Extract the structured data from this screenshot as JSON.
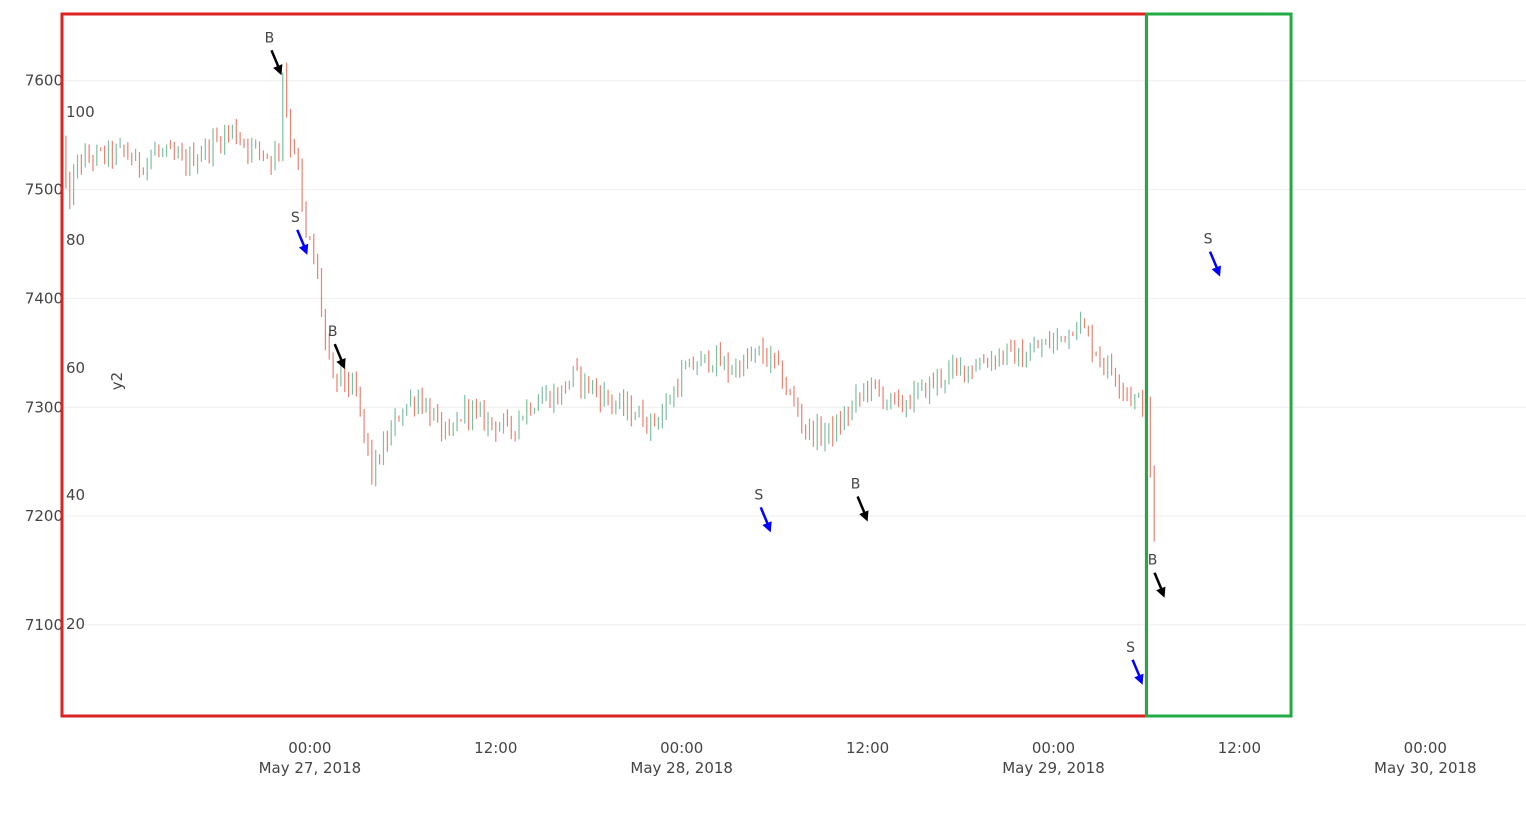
{
  "chart_data": {
    "type": "candlestick",
    "x_range": [
      "2018-05-26 08:00",
      "2018-05-30 06:30"
    ],
    "y_range": [
      7020,
      7665
    ],
    "y_ticks": [
      7100,
      7200,
      7300,
      7400,
      7500,
      7600
    ],
    "y2_label": "y2",
    "y2_ticks": [
      20,
      40,
      60,
      80,
      100
    ],
    "grid": true,
    "x_ticks": [
      {
        "at": "2018-05-27 00:00",
        "time": "00:00",
        "date": "May 27, 2018"
      },
      {
        "at": "2018-05-27 12:00",
        "time": "12:00",
        "date": ""
      },
      {
        "at": "2018-05-28 00:00",
        "time": "00:00",
        "date": "May 28, 2018"
      },
      {
        "at": "2018-05-28 12:00",
        "time": "12:00",
        "date": ""
      },
      {
        "at": "2018-05-29 00:00",
        "time": "00:00",
        "date": "May 29, 2018"
      },
      {
        "at": "2018-05-29 12:00",
        "time": "12:00",
        "date": ""
      },
      {
        "at": "2018-05-30 00:00",
        "time": "00:00",
        "date": "May 30, 2018"
      }
    ],
    "price_path": [
      [
        "2018-05-26 08:00",
        7540
      ],
      [
        "2018-05-26 08:20",
        7485
      ],
      [
        "2018-05-26 09:00",
        7525
      ],
      [
        "2018-05-26 10:00",
        7530
      ],
      [
        "2018-05-26 11:00",
        7532
      ],
      [
        "2018-05-26 12:00",
        7535
      ],
      [
        "2018-05-26 13:00",
        7522
      ],
      [
        "2018-05-26 14:00",
        7535
      ],
      [
        "2018-05-26 15:00",
        7530
      ],
      [
        "2018-05-26 16:00",
        7525
      ],
      [
        "2018-05-26 17:00",
        7535
      ],
      [
        "2018-05-26 18:00",
        7545
      ],
      [
        "2018-05-26 19:00",
        7555
      ],
      [
        "2018-05-26 20:00",
        7540
      ],
      [
        "2018-05-26 21:00",
        7535
      ],
      [
        "2018-05-26 21:30",
        7528
      ],
      [
        "2018-05-26 22:00",
        7540
      ],
      [
        "2018-05-26 22:15",
        7610
      ],
      [
        "2018-05-26 22:40",
        7545
      ],
      [
        "2018-05-26 23:00",
        7540
      ],
      [
        "2018-05-26 23:20",
        7510
      ],
      [
        "2018-05-26 23:40",
        7455
      ],
      [
        "2018-05-27 00:00",
        7450
      ],
      [
        "2018-05-27 00:30",
        7420
      ],
      [
        "2018-05-27 01:00",
        7360
      ],
      [
        "2018-05-27 01:30",
        7320
      ],
      [
        "2018-05-27 02:00",
        7330
      ],
      [
        "2018-05-27 03:00",
        7310
      ],
      [
        "2018-05-27 04:00",
        7240
      ],
      [
        "2018-05-27 05:00",
        7270
      ],
      [
        "2018-05-27 06:00",
        7300
      ],
      [
        "2018-05-27 07:00",
        7310
      ],
      [
        "2018-05-27 08:00",
        7290
      ],
      [
        "2018-05-27 09:00",
        7270
      ],
      [
        "2018-05-27 10:00",
        7300
      ],
      [
        "2018-05-27 11:00",
        7290
      ],
      [
        "2018-05-27 12:00",
        7285
      ],
      [
        "2018-05-27 13:00",
        7280
      ],
      [
        "2018-05-27 14:00",
        7300
      ],
      [
        "2018-05-27 15:00",
        7310
      ],
      [
        "2018-05-27 16:00",
        7310
      ],
      [
        "2018-05-27 17:00",
        7330
      ],
      [
        "2018-05-27 18:00",
        7320
      ],
      [
        "2018-05-27 19:00",
        7310
      ],
      [
        "2018-05-27 20:00",
        7300
      ],
      [
        "2018-05-27 21:00",
        7295
      ],
      [
        "2018-05-27 22:00",
        7285
      ],
      [
        "2018-05-27 23:00",
        7300
      ],
      [
        "2018-05-28 00:00",
        7330
      ],
      [
        "2018-05-28 01:00",
        7340
      ],
      [
        "2018-05-28 02:00",
        7345
      ],
      [
        "2018-05-28 03:00",
        7335
      ],
      [
        "2018-05-28 04:00",
        7340
      ],
      [
        "2018-05-28 05:00",
        7350
      ],
      [
        "2018-05-28 06:00",
        7340
      ],
      [
        "2018-05-28 07:00",
        7310
      ],
      [
        "2018-05-28 08:00",
        7280
      ],
      [
        "2018-05-28 09:00",
        7275
      ],
      [
        "2018-05-28 10:00",
        7280
      ],
      [
        "2018-05-28 11:00",
        7300
      ],
      [
        "2018-05-28 12:00",
        7320
      ],
      [
        "2018-05-28 13:00",
        7310
      ],
      [
        "2018-05-28 14:00",
        7300
      ],
      [
        "2018-05-28 15:00",
        7310
      ],
      [
        "2018-05-28 16:00",
        7320
      ],
      [
        "2018-05-28 17:00",
        7330
      ],
      [
        "2018-05-28 18:00",
        7335
      ],
      [
        "2018-05-28 19:00",
        7340
      ],
      [
        "2018-05-28 20:00",
        7345
      ],
      [
        "2018-05-28 21:00",
        7350
      ],
      [
        "2018-05-28 22:00",
        7345
      ],
      [
        "2018-05-28 23:00",
        7355
      ],
      [
        "2018-05-29 00:00",
        7360
      ],
      [
        "2018-05-29 01:00",
        7370
      ],
      [
        "2018-05-29 01:30",
        7380
      ],
      [
        "2018-05-29 02:00",
        7370
      ],
      [
        "2018-05-29 03:00",
        7345
      ],
      [
        "2018-05-29 04:00",
        7330
      ],
      [
        "2018-05-29 05:00",
        7310
      ],
      [
        "2018-05-29 06:00",
        7300
      ],
      [
        "2018-05-29 06:30",
        7180
      ]
    ],
    "visible_price_path_end": "2018-05-29 06:30",
    "annotations": [
      {
        "label": "B",
        "at": "2018-05-26 22:10",
        "price": 7605,
        "color": "#000000"
      },
      {
        "label": "S",
        "at": "2018-05-26 23:50",
        "price": 7440,
        "color": "#0000ff"
      },
      {
        "label": "B",
        "at": "2018-05-27 02:15",
        "price": 7335,
        "color": "#000000"
      },
      {
        "label": "S",
        "at": "2018-05-28 05:45",
        "price": 7185,
        "color": "#0000ff"
      },
      {
        "label": "B",
        "at": "2018-05-28 12:00",
        "price": 7195,
        "color": "#000000"
      },
      {
        "label": "S",
        "at": "2018-05-29 05:45",
        "price": 7045,
        "color": "#0000ff"
      },
      {
        "label": "B",
        "at": "2018-05-29 07:10",
        "price": 7125,
        "color": "#000000"
      },
      {
        "label": "S",
        "at": "2018-05-29 10:45",
        "price": 7420,
        "color": "#0000ff"
      }
    ],
    "highlight_boxes": [
      {
        "from": "2018-05-26 08:00",
        "to": "2018-05-29 06:00",
        "color": "#dd2222"
      },
      {
        "from": "2018-05-29 06:00",
        "to": "2018-05-29 15:20",
        "color": "#22aa44"
      }
    ],
    "colors": {
      "increasing": "#7fbfa0",
      "decreasing": "#f08070"
    }
  }
}
